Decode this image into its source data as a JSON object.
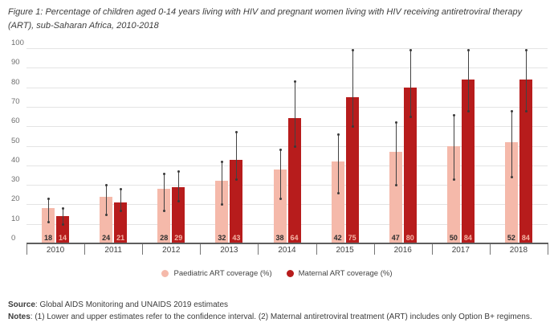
{
  "figure": {
    "title": "Figure 1: Percentage of children aged 0-14 years living with HIV and pregnant women living with HIV receiving antiretroviral therapy (ART), sub-Saharan Africa, 2010-2018",
    "source_label": "Source",
    "source_text": ": Global AIDS Monitoring and UNAIDS 2019 estimates",
    "notes_label": "Notes",
    "notes_text": ": (1) Lower and upper estimates refer to the confidence interval. (2) Maternal antiretroviral treatment (ART) includes only Option B+ regimens."
  },
  "colors": {
    "paediatric_bar": "#f5b9aa",
    "maternal_bar": "#b71c1c",
    "paediatric_value_label": "#2e2e2e",
    "maternal_value_label": "#f4b5a6",
    "gridline": "#e4e4e4",
    "axis_line": "#5f5f5f",
    "error_bar": "#424242"
  },
  "chart_data": {
    "type": "bar",
    "title": "Percentage of children aged 0-14 years living with HIV and pregnant women living with HIV receiving ART, sub-Saharan Africa, 2010-2018",
    "categories": [
      "2010",
      "2011",
      "2012",
      "2013",
      "2014",
      "2015",
      "2016",
      "2017",
      "2018"
    ],
    "series": [
      {
        "name": "Paediatric ART coverage (%)",
        "color": "#f5b9aa",
        "value_label_color": "#2e2e2e",
        "values": [
          18,
          24,
          28,
          32,
          38,
          42,
          47,
          50,
          52
        ],
        "ci_low": [
          11,
          15,
          17,
          20,
          23,
          26,
          30,
          33,
          34
        ],
        "ci_high": [
          23,
          30,
          36,
          42,
          48,
          56,
          62,
          66,
          68
        ]
      },
      {
        "name": "Maternal ART coverage (%)",
        "color": "#b71c1c",
        "value_label_color": "#f4b5a6",
        "values": [
          14,
          21,
          29,
          43,
          64,
          75,
          80,
          84,
          84
        ],
        "ci_low": [
          10,
          17,
          22,
          33,
          50,
          60,
          65,
          68,
          68
        ],
        "ci_high": [
          18,
          28,
          37,
          57,
          83,
          99,
          99,
          99,
          99
        ]
      }
    ],
    "xlabel": "",
    "ylabel": "",
    "ylim": [
      0,
      100
    ],
    "ytick_step": 10,
    "grid": true,
    "error_bars": true,
    "legend_position": "bottom",
    "value_labels_position": "inside-base"
  }
}
